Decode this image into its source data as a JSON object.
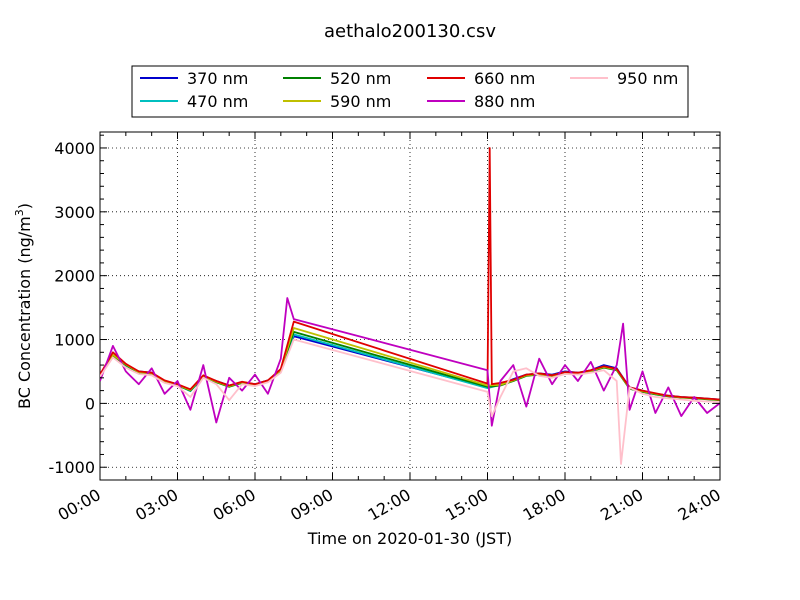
{
  "chart_data": {
    "type": "line",
    "title": "aethalo200130.csv",
    "xlabel": "Time on 2020-01-30 (JST)",
    "ylabel": "BC Concentration (ng/m³)",
    "ylabel_main": "BC Concentration (ng/m",
    "ylabel_sup": "3",
    "ylabel_tail": ")",
    "xlim": [
      "00:00",
      "24:00"
    ],
    "ylim": [
      -1200,
      4250
    ],
    "x_ticks": [
      "00:00",
      "03:00",
      "06:00",
      "09:00",
      "12:00",
      "15:00",
      "18:00",
      "21:00",
      "24:00"
    ],
    "y_ticks": [
      -1000,
      0,
      1000,
      2000,
      3000,
      4000
    ],
    "grid": true,
    "legend": "top, outside plot, 4 columns",
    "series": [
      {
        "name": "370 nm",
        "color": "#0000cc",
        "points": [
          [
            "00:00",
            450
          ],
          [
            "00:30",
            750
          ],
          [
            "01:00",
            600
          ],
          [
            "01:30",
            500
          ],
          [
            "02:00",
            480
          ],
          [
            "02:30",
            350
          ],
          [
            "03:00",
            300
          ],
          [
            "03:30",
            200
          ],
          [
            "04:00",
            420
          ],
          [
            "04:30",
            350
          ],
          [
            "05:00",
            280
          ],
          [
            "05:30",
            330
          ],
          [
            "06:00",
            300
          ],
          [
            "06:30",
            360
          ],
          [
            "07:00",
            520
          ],
          [
            "07:30",
            1050
          ],
          [
            "15:00",
            250
          ],
          [
            "15:30",
            300
          ],
          [
            "16:00",
            380
          ],
          [
            "16:30",
            450
          ],
          [
            "17:00",
            470
          ],
          [
            "17:30",
            450
          ],
          [
            "18:00",
            500
          ],
          [
            "18:30",
            480
          ],
          [
            "19:00",
            520
          ],
          [
            "19:30",
            600
          ],
          [
            "20:00",
            550
          ],
          [
            "20:30",
            250
          ],
          [
            "21:00",
            200
          ],
          [
            "21:30",
            150
          ],
          [
            "22:00",
            120
          ],
          [
            "22:30",
            100
          ],
          [
            "23:00",
            90
          ],
          [
            "23:59",
            60
          ]
        ]
      },
      {
        "name": "470 nm",
        "color": "#00bfbf",
        "points": [
          [
            "00:00",
            440
          ],
          [
            "00:30",
            730
          ],
          [
            "01:00",
            590
          ],
          [
            "01:30",
            490
          ],
          [
            "02:00",
            470
          ],
          [
            "02:30",
            340
          ],
          [
            "03:00",
            290
          ],
          [
            "03:30",
            190
          ],
          [
            "04:00",
            410
          ],
          [
            "04:30",
            340
          ],
          [
            "05:00",
            270
          ],
          [
            "05:30",
            320
          ],
          [
            "06:00",
            290
          ],
          [
            "06:30",
            350
          ],
          [
            "07:00",
            500
          ],
          [
            "07:30",
            1080
          ],
          [
            "15:00",
            240
          ],
          [
            "15:30",
            290
          ],
          [
            "16:00",
            370
          ],
          [
            "16:30",
            440
          ],
          [
            "17:00",
            460
          ],
          [
            "17:30",
            440
          ],
          [
            "18:00",
            490
          ],
          [
            "18:30",
            470
          ],
          [
            "19:00",
            510
          ],
          [
            "19:30",
            580
          ],
          [
            "20:00",
            530
          ],
          [
            "20:30",
            240
          ],
          [
            "21:00",
            190
          ],
          [
            "21:30",
            140
          ],
          [
            "22:00",
            110
          ],
          [
            "22:30",
            95
          ],
          [
            "23:00",
            85
          ],
          [
            "23:59",
            55
          ]
        ]
      },
      {
        "name": "520 nm",
        "color": "#008000",
        "points": [
          [
            "00:00",
            430
          ],
          [
            "00:30",
            740
          ],
          [
            "01:00",
            600
          ],
          [
            "01:30",
            480
          ],
          [
            "02:00",
            460
          ],
          [
            "02:30",
            340
          ],
          [
            "03:00",
            280
          ],
          [
            "03:30",
            200
          ],
          [
            "04:00",
            420
          ],
          [
            "04:30",
            330
          ],
          [
            "05:00",
            260
          ],
          [
            "05:30",
            320
          ],
          [
            "06:00",
            280
          ],
          [
            "06:30",
            340
          ],
          [
            "07:00",
            510
          ],
          [
            "07:30",
            1120
          ],
          [
            "15:00",
            260
          ],
          [
            "15:30",
            280
          ],
          [
            "16:00",
            350
          ],
          [
            "16:30",
            430
          ],
          [
            "17:00",
            450
          ],
          [
            "17:30",
            420
          ],
          [
            "18:00",
            470
          ],
          [
            "18:30",
            460
          ],
          [
            "19:00",
            500
          ],
          [
            "19:30",
            560
          ],
          [
            "20:00",
            520
          ],
          [
            "20:30",
            230
          ],
          [
            "21:00",
            180
          ],
          [
            "21:30",
            140
          ],
          [
            "22:00",
            110
          ],
          [
            "22:30",
            90
          ],
          [
            "23:00",
            80
          ],
          [
            "23:59",
            50
          ]
        ]
      },
      {
        "name": "590 nm",
        "color": "#bfbf00",
        "points": [
          [
            "00:00",
            440
          ],
          [
            "00:30",
            760
          ],
          [
            "01:00",
            610
          ],
          [
            "01:30",
            490
          ],
          [
            "02:00",
            470
          ],
          [
            "02:30",
            350
          ],
          [
            "03:00",
            290
          ],
          [
            "03:30",
            210
          ],
          [
            "04:00",
            430
          ],
          [
            "04:30",
            340
          ],
          [
            "05:00",
            270
          ],
          [
            "05:30",
            330
          ],
          [
            "06:00",
            290
          ],
          [
            "06:30",
            350
          ],
          [
            "07:00",
            520
          ],
          [
            "07:30",
            1180
          ],
          [
            "15:00",
            280
          ],
          [
            "15:30",
            290
          ],
          [
            "16:00",
            360
          ],
          [
            "16:30",
            440
          ],
          [
            "17:00",
            460
          ],
          [
            "17:30",
            430
          ],
          [
            "18:00",
            480
          ],
          [
            "18:30",
            470
          ],
          [
            "19:00",
            510
          ],
          [
            "19:30",
            570
          ],
          [
            "20:00",
            530
          ],
          [
            "20:30",
            240
          ],
          [
            "21:00",
            190
          ],
          [
            "21:30",
            150
          ],
          [
            "22:00",
            115
          ],
          [
            "22:30",
            95
          ],
          [
            "23:00",
            85
          ],
          [
            "23:59",
            55
          ]
        ]
      },
      {
        "name": "660 nm",
        "color": "#e00000",
        "points": [
          [
            "00:00",
            450
          ],
          [
            "00:30",
            800
          ],
          [
            "01:00",
            620
          ],
          [
            "01:30",
            500
          ],
          [
            "02:00",
            480
          ],
          [
            "02:30",
            360
          ],
          [
            "03:00",
            300
          ],
          [
            "03:30",
            220
          ],
          [
            "04:00",
            440
          ],
          [
            "04:30",
            350
          ],
          [
            "05:00",
            280
          ],
          [
            "05:30",
            340
          ],
          [
            "06:00",
            300
          ],
          [
            "06:30",
            360
          ],
          [
            "07:00",
            540
          ],
          [
            "07:30",
            1280
          ],
          [
            "15:00",
            310
          ],
          [
            "15:05",
            4000
          ],
          [
            "15:10",
            300
          ],
          [
            "15:30",
            320
          ],
          [
            "16:00",
            370
          ],
          [
            "16:30",
            450
          ],
          [
            "17:00",
            470
          ],
          [
            "17:30",
            440
          ],
          [
            "18:00",
            490
          ],
          [
            "18:30",
            480
          ],
          [
            "19:00",
            520
          ],
          [
            "19:30",
            580
          ],
          [
            "20:00",
            540
          ],
          [
            "20:30",
            250
          ],
          [
            "21:00",
            200
          ],
          [
            "21:30",
            160
          ],
          [
            "22:00",
            120
          ],
          [
            "22:30",
            100
          ],
          [
            "23:00",
            90
          ],
          [
            "23:59",
            60
          ]
        ]
      },
      {
        "name": "880 nm",
        "color": "#bf00bf",
        "points": [
          [
            "00:00",
            350
          ],
          [
            "00:30",
            900
          ],
          [
            "01:00",
            500
          ],
          [
            "01:30",
            300
          ],
          [
            "02:00",
            550
          ],
          [
            "02:30",
            150
          ],
          [
            "03:00",
            350
          ],
          [
            "03:30",
            -100
          ],
          [
            "04:00",
            600
          ],
          [
            "04:30",
            -300
          ],
          [
            "05:00",
            400
          ],
          [
            "05:30",
            200
          ],
          [
            "06:00",
            450
          ],
          [
            "06:30",
            150
          ],
          [
            "07:00",
            700
          ],
          [
            "07:15",
            1650
          ],
          [
            "07:30",
            1320
          ],
          [
            "15:00",
            520
          ],
          [
            "15:10",
            -350
          ],
          [
            "15:30",
            350
          ],
          [
            "16:00",
            600
          ],
          [
            "16:30",
            -50
          ],
          [
            "17:00",
            700
          ],
          [
            "17:30",
            300
          ],
          [
            "18:00",
            600
          ],
          [
            "18:30",
            350
          ],
          [
            "19:00",
            650
          ],
          [
            "19:30",
            200
          ],
          [
            "20:00",
            600
          ],
          [
            "20:15",
            1250
          ],
          [
            "20:30",
            -100
          ],
          [
            "21:00",
            500
          ],
          [
            "21:30",
            -150
          ],
          [
            "22:00",
            250
          ],
          [
            "22:30",
            -200
          ],
          [
            "23:00",
            100
          ],
          [
            "23:30",
            -150
          ],
          [
            "23:59",
            0
          ]
        ]
      },
      {
        "name": "950 nm",
        "color": "#ffc0cb",
        "points": [
          [
            "00:00",
            420
          ],
          [
            "00:30",
            720
          ],
          [
            "01:00",
            560
          ],
          [
            "01:30",
            460
          ],
          [
            "02:00",
            440
          ],
          [
            "02:30",
            320
          ],
          [
            "03:00",
            270
          ],
          [
            "03:30",
            100
          ],
          [
            "04:00",
            400
          ],
          [
            "04:30",
            300
          ],
          [
            "05:00",
            50
          ],
          [
            "05:30",
            300
          ],
          [
            "06:00",
            270
          ],
          [
            "06:30",
            330
          ],
          [
            "07:00",
            480
          ],
          [
            "07:30",
            1000
          ],
          [
            "15:00",
            180
          ],
          [
            "15:10",
            -200
          ],
          [
            "15:30",
            100
          ],
          [
            "16:00",
            500
          ],
          [
            "16:30",
            550
          ],
          [
            "17:00",
            430
          ],
          [
            "17:30",
            400
          ],
          [
            "18:00",
            460
          ],
          [
            "18:30",
            450
          ],
          [
            "19:00",
            480
          ],
          [
            "19:30",
            520
          ],
          [
            "20:00",
            350
          ],
          [
            "20:10",
            -950
          ],
          [
            "20:30",
            250
          ],
          [
            "21:00",
            150
          ],
          [
            "21:30",
            100
          ],
          [
            "22:00",
            80
          ],
          [
            "22:30",
            60
          ],
          [
            "23:00",
            40
          ],
          [
            "23:59",
            20
          ]
        ]
      }
    ]
  }
}
